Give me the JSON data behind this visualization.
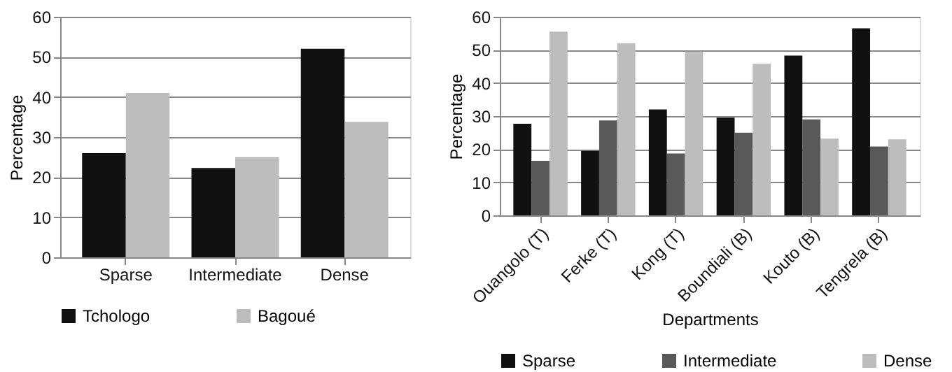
{
  "chart_data": [
    {
      "type": "bar",
      "categories": [
        "Sparse",
        "Intermediate",
        "Dense"
      ],
      "ylabel": "Percentage",
      "ylim": [
        0,
        60
      ],
      "yticks": [
        0,
        10,
        20,
        30,
        40,
        50,
        60
      ],
      "grid": "y",
      "legend": "bottom",
      "series": [
        {
          "name": "Tchologo",
          "color": "#111111",
          "values": [
            26,
            22.3,
            52
          ]
        },
        {
          "name": "Bagoué",
          "color": "#bdbdbd",
          "values": [
            41,
            25,
            33.8
          ]
        }
      ]
    },
    {
      "type": "bar",
      "categories": [
        "Ouangolo (T)",
        "Ferke (T)",
        "Kong (T)",
        "Boundiali (B)",
        "Kouto (B)",
        "Tengrela (B)"
      ],
      "xlabel": "Departments",
      "ylabel": "Percentage",
      "ylim": [
        0,
        60
      ],
      "yticks": [
        0,
        10,
        20,
        30,
        40,
        50,
        60
      ],
      "grid": "y",
      "legend": "bottom",
      "series": [
        {
          "name": "Sparse",
          "color": "#111111",
          "values": [
            27.7,
            19.5,
            32,
            29.5,
            48.3,
            56.5
          ]
        },
        {
          "name": "Intermediate",
          "color": "#595959",
          "values": [
            16.5,
            28.7,
            18.7,
            25,
            29,
            20.8
          ]
        },
        {
          "name": "Dense",
          "color": "#bdbdbd",
          "values": [
            55.5,
            52,
            49.5,
            45.8,
            23.2,
            23
          ]
        }
      ]
    }
  ]
}
